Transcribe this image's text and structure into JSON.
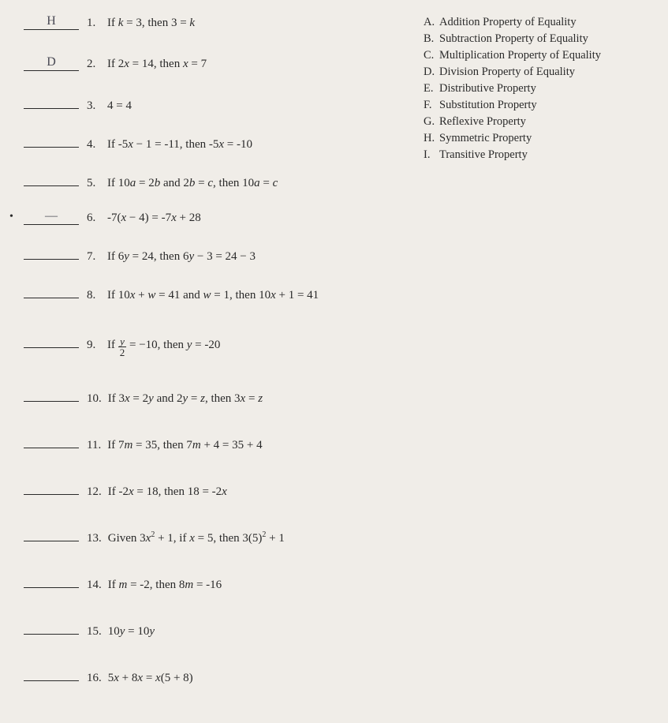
{
  "questions": [
    {
      "num": "1.",
      "blank": "H",
      "text": "If <i>k</i> = 3, then 3 = <i>k</i>"
    },
    {
      "num": "2.",
      "blank": "D",
      "text": "If 2<i>x</i> = 14, then <i>x</i> = 7"
    },
    {
      "num": "3.",
      "blank": "",
      "text": "4 = 4"
    },
    {
      "num": "4.",
      "blank": "",
      "text": "If -5<i>x</i> − 1 = -11, then -5<i>x</i> = -10"
    },
    {
      "num": "5.",
      "blank": "",
      "text": "If 10<i>a</i> = 2<i>b</i> and 2<i>b</i> = <i>c</i>, then 10<i>a</i> = <i>c</i>"
    },
    {
      "num": "6.",
      "blank": "—",
      "text": "-7(<i>x</i> − 4) = -7<i>x</i> + 28",
      "dot": true
    },
    {
      "num": "7.",
      "blank": "",
      "text": "If 6<i>y</i> = 24, then 6<i>y</i> − 3 = 24 − 3"
    },
    {
      "num": "8.",
      "blank": "",
      "text": "If 10<i>x</i> + <i>w</i> = 41 and <i>w</i> = 1, then 10<i>x</i> + 1 = 41"
    },
    {
      "num": "9.",
      "blank": "",
      "text": "If <span class='frac'><span class='num'>y</span><span class='den'>2</span></span> = −10, then <i>y</i> = -20"
    },
    {
      "num": "10.",
      "blank": "",
      "text": "If 3<i>x</i> = 2<i>y</i> and 2<i>y</i> = <i>z</i>, then 3<i>x</i> = <i>z</i>"
    },
    {
      "num": "11.",
      "blank": "",
      "text": "If 7<i>m</i> = 35, then 7<i>m</i> + 4 = 35 + 4"
    },
    {
      "num": "12.",
      "blank": "",
      "text": "If -2<i>x</i> = 18, then 18 = -2<i>x</i>"
    },
    {
      "num": "13.",
      "blank": "",
      "text": "Given 3<i>x</i><sup>2</sup> + 1, if <i>x</i> = 5, then 3(5)<sup>2</sup> + 1"
    },
    {
      "num": "14.",
      "blank": "",
      "text": "If <i>m</i> = -2, then 8<i>m</i> = -16"
    },
    {
      "num": "15.",
      "blank": "",
      "text": "10<i>y</i> = 10<i>y</i>"
    },
    {
      "num": "16.",
      "blank": "",
      "text": "5<i>x</i> + 8<i>x</i> = <i>x</i>(5 + 8)"
    }
  ],
  "answers": [
    {
      "letter": "A.",
      "text": "Addition Property of Equality"
    },
    {
      "letter": "B.",
      "text": "Subtraction Property of Equality"
    },
    {
      "letter": "C.",
      "text": "Multiplication Property of Equality"
    },
    {
      "letter": "D.",
      "text": "Division Property of Equality"
    },
    {
      "letter": "E.",
      "text": "Distributive Property"
    },
    {
      "letter": "F.",
      "text": "Substitution Property"
    },
    {
      "letter": "G.",
      "text": "Reflexive Property"
    },
    {
      "letter": "H.",
      "text": "Symmetric Property"
    },
    {
      "letter": "I.",
      "text": "Transitive Property"
    }
  ],
  "spacing": {
    "q_margin_bottom": 26,
    "q_font_size": 15,
    "ans_font_size": 14.5,
    "extra_gap_after": [
      7,
      8,
      9,
      10,
      11,
      12,
      13,
      14
    ]
  },
  "colors": {
    "background": "#f0ede8",
    "text": "#2a2a2a",
    "handwriting": "#4a4a55"
  }
}
